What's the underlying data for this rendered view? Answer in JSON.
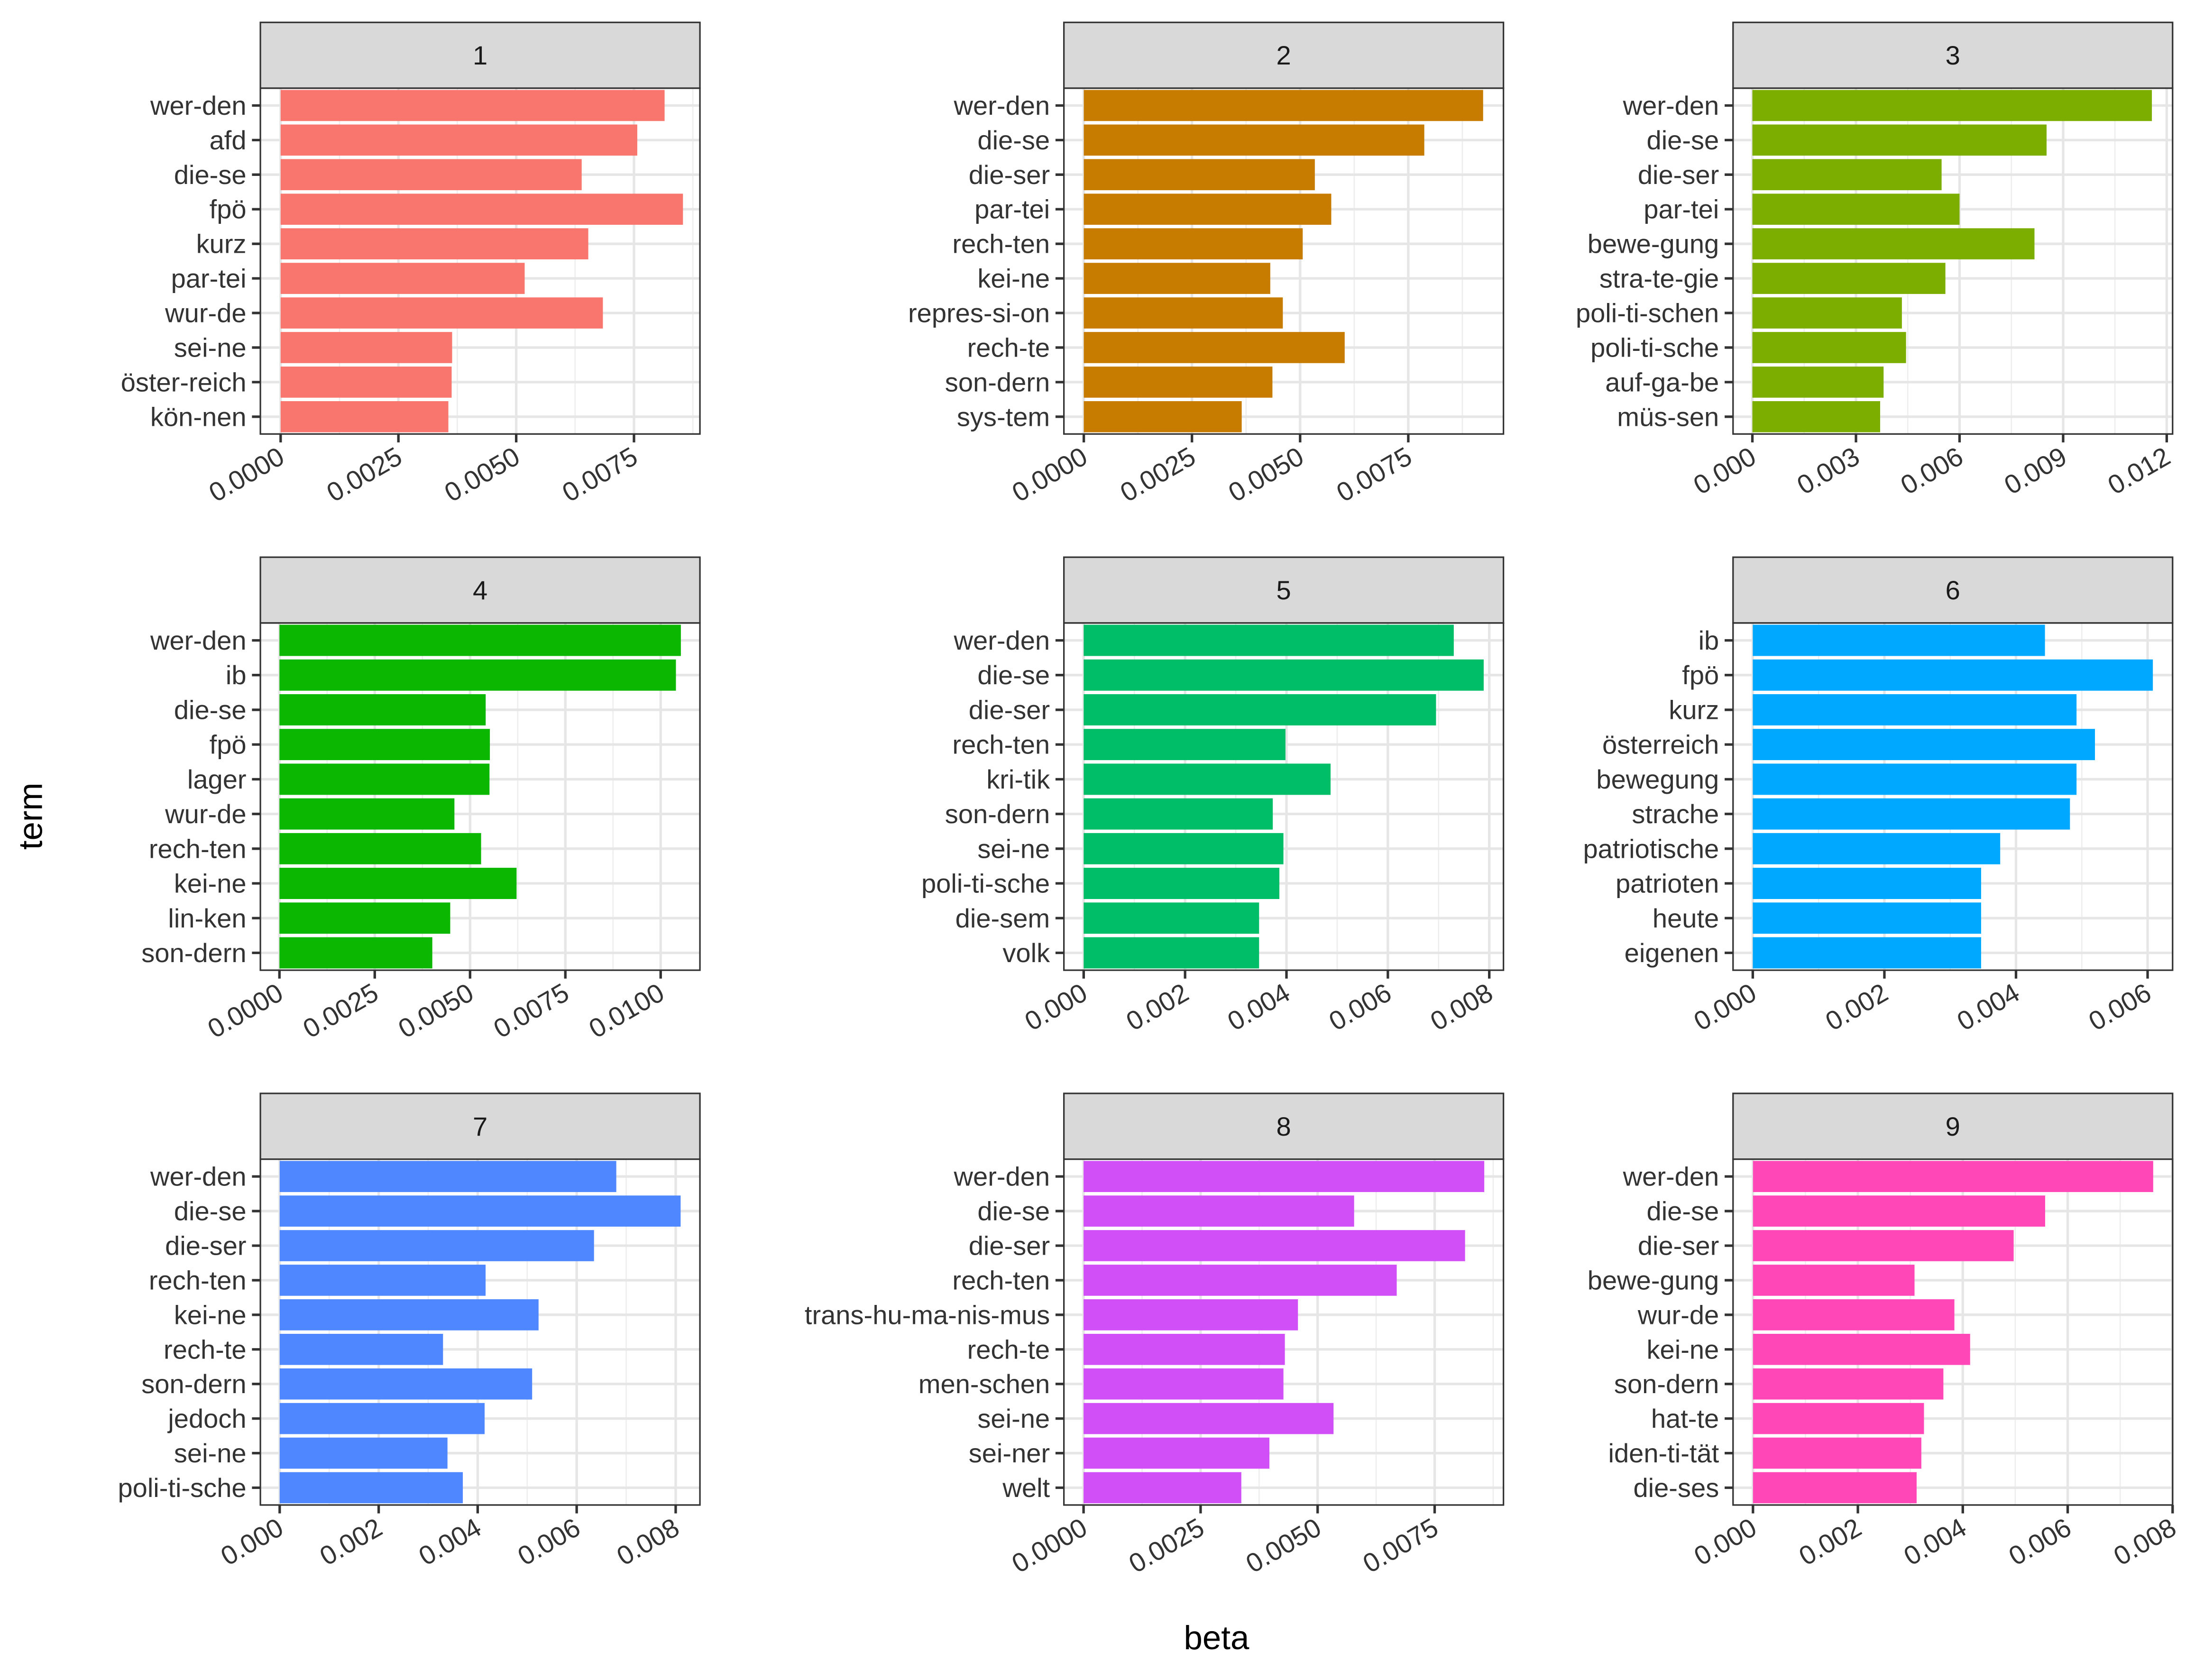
{
  "chart_data": {
    "type": "bar",
    "orientation": "horizontal",
    "facet_layout": "3x3 grid, free scales",
    "xlabel": "beta",
    "ylabel": "term",
    "grid": true,
    "legend": "none",
    "panels": [
      {
        "title": "1",
        "color": "#F8766D",
        "xticks": [
          0,
          0.0025,
          0.005,
          0.0075
        ],
        "xtick_labels": [
          "0.0000",
          "0.0025",
          "0.0050",
          "0.0075"
        ],
        "xlim": [
          -0.00043,
          0.0089
        ],
        "terms": [
          "wer-den",
          "afd",
          "die-se",
          "fpö",
          "kurz",
          "par-tei",
          "wur-de",
          "sei-ne",
          "öster-reich",
          "kön-nen"
        ],
        "values": [
          0.00815,
          0.00757,
          0.00639,
          0.00854,
          0.00653,
          0.00518,
          0.00684,
          0.00364,
          0.00363,
          0.00356
        ]
      },
      {
        "title": "2",
        "color": "#C77C00",
        "xticks": [
          0,
          0.0025,
          0.005,
          0.0075
        ],
        "xtick_labels": [
          "0.0000",
          "0.0025",
          "0.0050",
          "0.0075"
        ],
        "xlim": [
          -0.00046,
          0.0097
        ],
        "terms": [
          "wer-den",
          "die-se",
          "die-ser",
          "par-tei",
          "rech-ten",
          "kei-ne",
          "repres-si-on",
          "rech-te",
          "son-dern",
          "sys-tem"
        ],
        "values": [
          0.00923,
          0.00787,
          0.00534,
          0.00572,
          0.00506,
          0.00431,
          0.0046,
          0.00603,
          0.00436,
          0.00365
        ]
      },
      {
        "title": "3",
        "color": "#7CAE00",
        "xticks": [
          0,
          0.003,
          0.006,
          0.009,
          0.012
        ],
        "xtick_labels": [
          "0.000",
          "0.003",
          "0.006",
          "0.009",
          "0.012"
        ],
        "xlim": [
          -0.00056,
          0.01217
        ],
        "terms": [
          "wer-den",
          "die-se",
          "die-ser",
          "par-tei",
          "bewe-gung",
          "stra-te-gie",
          "poli-ti-schen",
          "poli-ti-sche",
          "auf-ga-be",
          "müs-sen"
        ],
        "values": [
          0.01157,
          0.00852,
          0.00548,
          0.006,
          0.00817,
          0.00559,
          0.00433,
          0.00445,
          0.0038,
          0.0037
        ]
      },
      {
        "title": "4",
        "color": "#0CB702",
        "xticks": [
          0,
          0.0025,
          0.005,
          0.0075,
          0.01
        ],
        "xtick_labels": [
          "0.0000",
          "0.0025",
          "0.0050",
          "0.0075",
          "0.0100"
        ],
        "xlim": [
          -0.0005,
          0.01103
        ],
        "terms": [
          "wer-den",
          "ib",
          "die-se",
          "fpö",
          "lager",
          "wur-de",
          "rech-ten",
          "kei-ne",
          "lin-ken",
          "son-dern"
        ],
        "values": [
          0.01053,
          0.0104,
          0.00541,
          0.00552,
          0.00551,
          0.00459,
          0.00529,
          0.00622,
          0.00448,
          0.00401
        ]
      },
      {
        "title": "5",
        "color": "#00BE67",
        "xticks": [
          0,
          0.002,
          0.004,
          0.006,
          0.008
        ],
        "xtick_labels": [
          "0.000",
          "0.002",
          "0.004",
          "0.006",
          "0.008"
        ],
        "xlim": [
          -0.00039,
          0.00828
        ],
        "terms": [
          "wer-den",
          "die-se",
          "die-ser",
          "rech-ten",
          "kri-tik",
          "son-dern",
          "sei-ne",
          "poli-ti-sche",
          "die-sem",
          "volk"
        ],
        "values": [
          0.0073,
          0.00789,
          0.00695,
          0.00398,
          0.00487,
          0.00373,
          0.00394,
          0.00386,
          0.00346,
          0.00346
        ]
      },
      {
        "title": "6",
        "color": "#00A9FF",
        "xticks": [
          0,
          0.002,
          0.004,
          0.006
        ],
        "xtick_labels": [
          "0.000",
          "0.002",
          "0.004",
          "0.006"
        ],
        "xlim": [
          -0.0003,
          0.00638
        ],
        "terms": [
          "ib",
          "fpö",
          "kurz",
          "österreich",
          "bewegung",
          "strache",
          "patriotische",
          "patrioten",
          "heute",
          "eigenen"
        ],
        "values": [
          0.00444,
          0.00608,
          0.00492,
          0.0052,
          0.00492,
          0.00482,
          0.00376,
          0.00347,
          0.00347,
          0.00347
        ]
      },
      {
        "title": "7",
        "color": "#4E87FF",
        "xticks": [
          0,
          0.002,
          0.004,
          0.006,
          0.008
        ],
        "xtick_labels": [
          "0.000",
          "0.002",
          "0.004",
          "0.006",
          "0.008"
        ],
        "xlim": [
          -0.00039,
          0.00849
        ],
        "terms": [
          "wer-den",
          "die-se",
          "die-ser",
          "rech-ten",
          "kei-ne",
          "rech-te",
          "son-dern",
          "jedoch",
          "sei-ne",
          "poli-ti-sche"
        ],
        "values": [
          0.0068,
          0.0081,
          0.00635,
          0.00416,
          0.00523,
          0.0033,
          0.0051,
          0.00414,
          0.00339,
          0.0037
        ]
      },
      {
        "title": "8",
        "color": "#D14FF7",
        "xticks": [
          0,
          0.0025,
          0.005,
          0.0075
        ],
        "xtick_labels": [
          "0.0000",
          "0.0025",
          "0.0050",
          "0.0075"
        ],
        "xlim": [
          -0.00042,
          0.00897
        ],
        "terms": [
          "wer-den",
          "die-se",
          "die-ser",
          "rech-ten",
          "trans-hu-ma-nis-mus",
          "rech-te",
          "men-schen",
          "sei-ne",
          "sei-ner",
          "welt"
        ],
        "values": [
          0.00856,
          0.00578,
          0.00815,
          0.00669,
          0.00458,
          0.0043,
          0.00427,
          0.00534,
          0.00397,
          0.00337
        ]
      },
      {
        "title": "9",
        "color": "#FF47B8",
        "xticks": [
          0,
          0.002,
          0.004,
          0.006,
          0.008
        ],
        "xtick_labels": [
          "0.000",
          "0.002",
          "0.004",
          "0.006",
          "0.008"
        ],
        "xlim": [
          -0.00038,
          0.008
        ],
        "terms": [
          "wer-den",
          "die-se",
          "die-ser",
          "bewe-gung",
          "wur-de",
          "kei-ne",
          "son-dern",
          "hat-te",
          "iden-ti-tät",
          "die-ses"
        ],
        "values": [
          0.00763,
          0.00557,
          0.00497,
          0.00308,
          0.00384,
          0.00414,
          0.00363,
          0.00326,
          0.00321,
          0.00312
        ]
      }
    ]
  }
}
